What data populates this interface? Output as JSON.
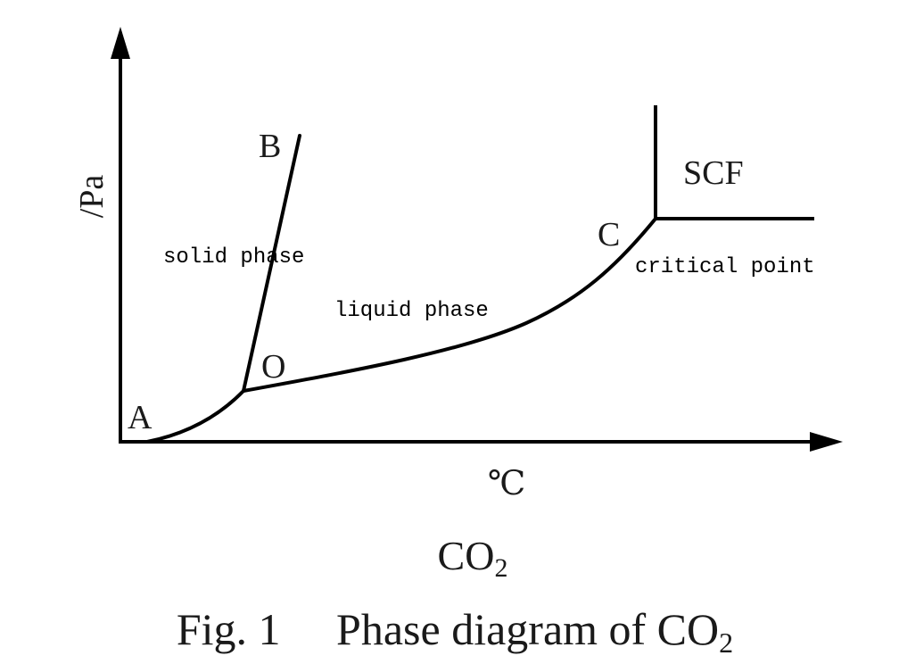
{
  "colors": {
    "line": "#000000",
    "text": "#1a1a1a",
    "background": "#ffffff"
  },
  "axes": {
    "y_label": "/Pa",
    "x_label": "℃"
  },
  "points": {
    "A": "A",
    "B": "B",
    "O": "O",
    "C": "C"
  },
  "regions": {
    "solid": "solid phase",
    "liquid": "liquid phase",
    "scf": "SCF",
    "critical_point": "critical point"
  },
  "subtitle": {
    "main": "CO",
    "sub": "2"
  },
  "caption": {
    "main": "Fig. 1  Phase diagram of CO",
    "sub": "2"
  }
}
